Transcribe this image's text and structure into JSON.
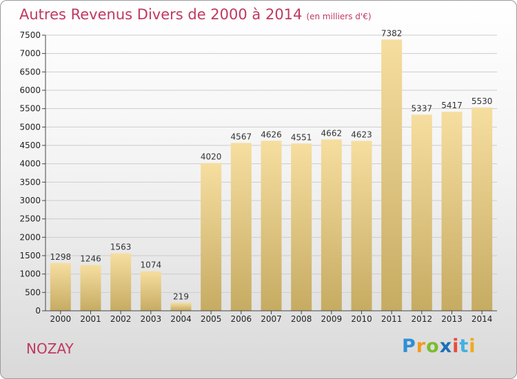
{
  "title": "Autres Revenus Divers de 2000 à 2014",
  "subtitle": "(en milliers d'€)",
  "place_name": "NOZAY",
  "logo_text": "Proxiti",
  "colors": {
    "title": "#c0395f",
    "bar_light": "#f6dea0",
    "bar_dark": "#c6ab62",
    "grid": "#cccccc"
  },
  "chart_data": {
    "type": "bar",
    "title": "Autres Revenus Divers de 2000 à 2014",
    "subtitle": "(en milliers d'€)",
    "xlabel": "",
    "ylabel": "",
    "categories": [
      "2000",
      "2001",
      "2002",
      "2003",
      "2004",
      "2005",
      "2006",
      "2007",
      "2008",
      "2009",
      "2010",
      "2011",
      "2012",
      "2013",
      "2014"
    ],
    "values": [
      1298,
      1246,
      1563,
      1074,
      219,
      4020,
      4567,
      4626,
      4551,
      4662,
      4623,
      7382,
      5337,
      5417,
      5530
    ],
    "ylim": [
      0,
      7500
    ],
    "yticks": [
      0,
      500,
      1000,
      1500,
      2000,
      2500,
      3000,
      3500,
      4000,
      4500,
      5000,
      5500,
      6000,
      6500,
      7000,
      7500
    ],
    "grid": true,
    "legend": "none"
  }
}
